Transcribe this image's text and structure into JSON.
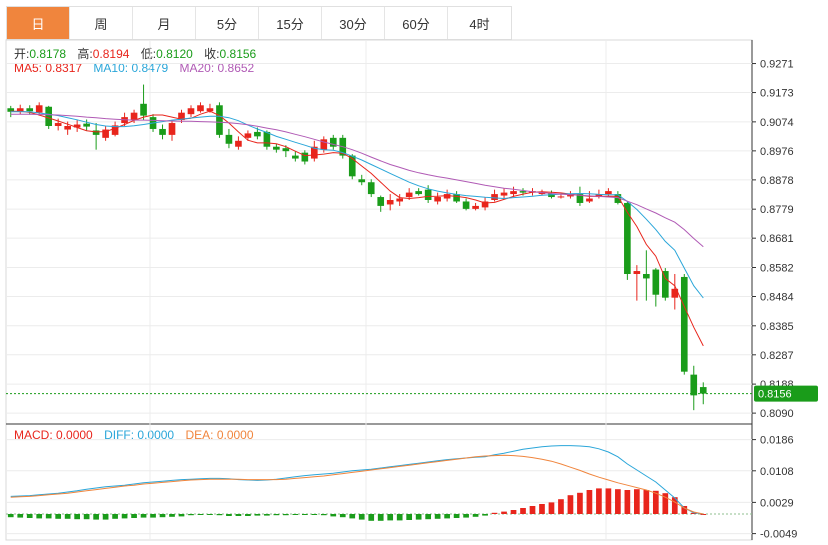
{
  "tabs": [
    "日",
    "周",
    "月",
    "5分",
    "15分",
    "30分",
    "60分",
    "4时"
  ],
  "active_tab": 0,
  "ohlc_info": {
    "open_label": "开:",
    "open": "0.8178",
    "high_label": "高:",
    "high": "0.8194",
    "low_label": "低:",
    "low": "0.8120",
    "close_label": "收:",
    "close": "0.8156"
  },
  "ma_info": {
    "ma5_label": "MA5:",
    "ma5": "0.8317",
    "ma10_label": "MA10:",
    "ma10": "0.8479",
    "ma20_label": "MA20:",
    "ma20": "0.8652"
  },
  "macd_info": {
    "macd_label": "MACD:",
    "macd": "0.0000",
    "diff_label": "DIFF:",
    "diff": "0.0000",
    "dea_label": "DEA:",
    "dea": "0.0000"
  },
  "current_price_tag": "0.8156",
  "colors": {
    "up": "#e8251c",
    "down": "#1a9c1a",
    "ma5": "#e8251c",
    "ma10": "#2aa6d9",
    "ma20": "#b05ab5",
    "macd": "#e8251c",
    "diff": "#2aa6d9",
    "dea": "#f0853d",
    "price_line": "#1a9c1a",
    "tab_active": "#f0853d"
  },
  "chart_data": [
    {
      "type": "candlestick",
      "y_ticks": [
        "0.9271",
        "0.9173",
        "0.9074",
        "0.8976",
        "0.8878",
        "0.8779",
        "0.8681",
        "0.8582",
        "0.8484",
        "0.8385",
        "0.8287",
        "0.8188",
        "0.8090"
      ],
      "ylim": [
        0.806,
        0.931
      ],
      "candles": [
        [
          0.912,
          0.9108,
          0.9128,
          0.909
        ],
        [
          0.9108,
          0.912,
          0.9132,
          0.91
        ],
        [
          0.912,
          0.911,
          0.913,
          0.9098
        ],
        [
          0.9105,
          0.913,
          0.914,
          0.9095
        ],
        [
          0.9125,
          0.906,
          0.9128,
          0.905
        ],
        [
          0.906,
          0.907,
          0.9085,
          0.9045
        ],
        [
          0.9048,
          0.906,
          0.9075,
          0.903
        ],
        [
          0.9055,
          0.9065,
          0.908,
          0.904
        ],
        [
          0.9068,
          0.9058,
          0.9082,
          0.9045
        ],
        [
          0.9045,
          0.903,
          0.907,
          0.898
        ],
        [
          0.902,
          0.9048,
          0.906,
          0.901
        ],
        [
          0.903,
          0.9062,
          0.9075,
          0.9025
        ],
        [
          0.907,
          0.909,
          0.9105,
          0.906
        ],
        [
          0.908,
          0.9105,
          0.9115,
          0.907
        ],
        [
          0.9135,
          0.9095,
          0.92,
          0.908
        ],
        [
          0.909,
          0.905,
          0.91,
          0.904
        ],
        [
          0.905,
          0.903,
          0.9065,
          0.9015
        ],
        [
          0.903,
          0.907,
          0.908,
          0.901
        ],
        [
          0.908,
          0.9105,
          0.9115,
          0.907
        ],
        [
          0.91,
          0.912,
          0.913,
          0.909
        ],
        [
          0.911,
          0.913,
          0.914,
          0.9105
        ],
        [
          0.911,
          0.912,
          0.9135,
          0.9105
        ],
        [
          0.913,
          0.903,
          0.914,
          0.902
        ],
        [
          0.903,
          0.9,
          0.905,
          0.8985
        ],
        [
          0.899,
          0.901,
          0.9025,
          0.898
        ],
        [
          0.902,
          0.9035,
          0.9045,
          0.901
        ],
        [
          0.904,
          0.9025,
          0.9055,
          0.9015
        ],
        [
          0.904,
          0.899,
          0.9045,
          0.898
        ],
        [
          0.899,
          0.898,
          0.9,
          0.897
        ],
        [
          0.8985,
          0.8975,
          0.8995,
          0.8955
        ],
        [
          0.896,
          0.895,
          0.8975,
          0.894
        ],
        [
          0.897,
          0.894,
          0.8978,
          0.893
        ],
        [
          0.895,
          0.899,
          0.901,
          0.894
        ],
        [
          0.898,
          0.9015,
          0.9025,
          0.897
        ],
        [
          0.902,
          0.899,
          0.903,
          0.898
        ],
        [
          0.902,
          0.896,
          0.903,
          0.895
        ],
        [
          0.896,
          0.889,
          0.8965,
          0.888
        ],
        [
          0.888,
          0.887,
          0.8895,
          0.886
        ],
        [
          0.887,
          0.883,
          0.888,
          0.882
        ],
        [
          0.882,
          0.879,
          0.8825,
          0.877
        ],
        [
          0.8795,
          0.881,
          0.883,
          0.8775
        ],
        [
          0.8805,
          0.8815,
          0.883,
          0.879
        ],
        [
          0.882,
          0.8835,
          0.885,
          0.881
        ],
        [
          0.884,
          0.883,
          0.885,
          0.8825
        ],
        [
          0.8845,
          0.881,
          0.886,
          0.88
        ],
        [
          0.8805,
          0.882,
          0.8835,
          0.8795
        ],
        [
          0.8815,
          0.883,
          0.8845,
          0.8805
        ],
        [
          0.883,
          0.8805,
          0.884,
          0.88
        ],
        [
          0.8805,
          0.878,
          0.8815,
          0.8775
        ],
        [
          0.878,
          0.879,
          0.88,
          0.8775
        ],
        [
          0.8785,
          0.8805,
          0.882,
          0.8775
        ],
        [
          0.881,
          0.883,
          0.8845,
          0.8805
        ],
        [
          0.8825,
          0.8835,
          0.885,
          0.8815
        ],
        [
          0.883,
          0.884,
          0.8855,
          0.882
        ],
        [
          0.884,
          0.8835,
          0.885,
          0.8825
        ],
        [
          0.8835,
          0.884,
          0.885,
          0.8825
        ],
        [
          0.883,
          0.8838,
          0.8845,
          0.8825
        ],
        [
          0.8832,
          0.882,
          0.8842,
          0.8815
        ],
        [
          0.882,
          0.8822,
          0.8832,
          0.8815
        ],
        [
          0.8822,
          0.883,
          0.884,
          0.8815
        ],
        [
          0.883,
          0.88,
          0.8855,
          0.879
        ],
        [
          0.8805,
          0.8815,
          0.884,
          0.88
        ],
        [
          0.882,
          0.883,
          0.8845,
          0.8815
        ],
        [
          0.883,
          0.884,
          0.885,
          0.882
        ],
        [
          0.883,
          0.88,
          0.884,
          0.8795
        ],
        [
          0.88,
          0.856,
          0.8805,
          0.854
        ],
        [
          0.856,
          0.857,
          0.859,
          0.847
        ],
        [
          0.856,
          0.8545,
          0.864,
          0.847
        ],
        [
          0.8575,
          0.849,
          0.858,
          0.845
        ],
        [
          0.857,
          0.848,
          0.858,
          0.847
        ],
        [
          0.848,
          0.851,
          0.856,
          0.844
        ],
        [
          0.855,
          0.823,
          0.856,
          0.822
        ],
        [
          0.822,
          0.815,
          0.825,
          0.81
        ],
        [
          0.8178,
          0.8156,
          0.8194,
          0.812
        ]
      ],
      "ma5": [
        0.911,
        0.911,
        0.9106,
        0.9097,
        0.9087,
        0.9077,
        0.9066,
        0.9055,
        0.9044,
        0.904,
        0.9041,
        0.9052,
        0.9065,
        0.9079,
        0.909,
        0.9097,
        0.9097,
        0.909,
        0.9083,
        0.9086,
        0.91,
        0.911,
        0.9095,
        0.907,
        0.904,
        0.9012,
        0.9003,
        0.9003,
        0.9,
        0.899,
        0.8975,
        0.896,
        0.8962,
        0.8965,
        0.897,
        0.8968,
        0.895,
        0.8925,
        0.89,
        0.887,
        0.884,
        0.8818,
        0.8815,
        0.8818,
        0.8822,
        0.8823,
        0.8825,
        0.8822,
        0.8818,
        0.881,
        0.88,
        0.8802,
        0.8812,
        0.8822,
        0.883,
        0.8836,
        0.8838,
        0.8836,
        0.8834,
        0.883,
        0.8826,
        0.8822,
        0.8822,
        0.8823,
        0.8822,
        0.8768,
        0.872,
        0.866,
        0.862,
        0.8545,
        0.852,
        0.845,
        0.838,
        0.8317
      ],
      "ma10": [
        0.9108,
        0.9108,
        0.9108,
        0.9104,
        0.91,
        0.9095,
        0.9088,
        0.9081,
        0.9073,
        0.9065,
        0.906,
        0.9058,
        0.9058,
        0.9061,
        0.9065,
        0.907,
        0.9075,
        0.908,
        0.9083,
        0.9087,
        0.909,
        0.9093,
        0.9093,
        0.9088,
        0.9078,
        0.9063,
        0.905,
        0.9038,
        0.9025,
        0.9015,
        0.9005,
        0.8995,
        0.8985,
        0.898,
        0.8978,
        0.897,
        0.8958,
        0.8945,
        0.893,
        0.8915,
        0.89,
        0.8885,
        0.887,
        0.8858,
        0.8848,
        0.884,
        0.8834,
        0.8829,
        0.8825,
        0.8822,
        0.8819,
        0.8817,
        0.8815,
        0.8818,
        0.882,
        0.8823,
        0.8826,
        0.8828,
        0.883,
        0.8831,
        0.8832,
        0.8831,
        0.8829,
        0.8828,
        0.8828,
        0.8805,
        0.8778,
        0.8745,
        0.871,
        0.867,
        0.864,
        0.858,
        0.852,
        0.8479
      ],
      "ma20": [
        0.91,
        0.91,
        0.91,
        0.9099,
        0.9098,
        0.9097,
        0.9095,
        0.9093,
        0.909,
        0.9088,
        0.9085,
        0.9083,
        0.9081,
        0.908,
        0.908,
        0.9079,
        0.9078,
        0.9077,
        0.9076,
        0.9076,
        0.9075,
        0.9074,
        0.9073,
        0.9071,
        0.9068,
        0.9064,
        0.9059,
        0.9053,
        0.9047,
        0.904,
        0.9032,
        0.9024,
        0.9015,
        0.9006,
        0.8998,
        0.899,
        0.898,
        0.8968,
        0.8955,
        0.8942,
        0.893,
        0.892,
        0.891,
        0.8902,
        0.8895,
        0.8889,
        0.8884,
        0.8878,
        0.8872,
        0.8866,
        0.886,
        0.8855,
        0.885,
        0.8846,
        0.8842,
        0.8838,
        0.8835,
        0.8832,
        0.883,
        0.8828,
        0.8826,
        0.8824,
        0.8822,
        0.882,
        0.8818,
        0.8806,
        0.8794,
        0.878,
        0.8766,
        0.875,
        0.8735,
        0.871,
        0.868,
        0.8652
      ]
    },
    {
      "type": "macd",
      "y_ticks": [
        "0.0186",
        "0.0108",
        "0.0029",
        "-0.0049"
      ],
      "ylim": [
        -0.006,
        0.021
      ],
      "hist": [
        -0.0008,
        -0.0009,
        -0.001,
        -0.0011,
        -0.0011,
        -0.0012,
        -0.0012,
        -0.0013,
        -0.0013,
        -0.0014,
        -0.0014,
        -0.0012,
        -0.0011,
        -0.001,
        -0.0009,
        -0.0009,
        -0.0008,
        -0.0007,
        -0.0006,
        -0.0003,
        -0.0002,
        -0.0002,
        -0.0003,
        -0.0005,
        -0.0005,
        -0.0005,
        -0.0004,
        -0.0004,
        -0.0003,
        -0.0003,
        -0.0002,
        -0.0002,
        -0.0001,
        -0.0003,
        -0.0006,
        -0.0008,
        -0.0011,
        -0.0014,
        -0.0017,
        -0.0017,
        -0.0016,
        -0.0016,
        -0.0015,
        -0.0014,
        -0.0013,
        -0.0012,
        -0.0011,
        -0.001,
        -0.0009,
        -0.0007,
        -0.0004,
        0.0003,
        0.0006,
        0.001,
        0.0015,
        0.002,
        0.0025,
        0.0029,
        0.0037,
        0.0047,
        0.0053,
        0.006,
        0.0064,
        0.0064,
        0.0062,
        0.006,
        0.0062,
        0.006,
        0.0058,
        0.0052,
        0.0042,
        0.002,
        0.0003,
        0.0
      ],
      "diff": [
        0.0044,
        0.0045,
        0.0046,
        0.0048,
        0.005,
        0.0052,
        0.0055,
        0.0058,
        0.0062,
        0.0065,
        0.0068,
        0.007,
        0.0072,
        0.0075,
        0.0078,
        0.008,
        0.0082,
        0.0084,
        0.0086,
        0.0087,
        0.0088,
        0.0089,
        0.0089,
        0.0088,
        0.0086,
        0.0085,
        0.0084,
        0.0085,
        0.0087,
        0.009,
        0.0093,
        0.0096,
        0.0098,
        0.01,
        0.0102,
        0.0105,
        0.0108,
        0.011,
        0.0112,
        0.0115,
        0.0118,
        0.0121,
        0.0124,
        0.0127,
        0.013,
        0.0133,
        0.0136,
        0.0138,
        0.014,
        0.0142,
        0.0143,
        0.0148,
        0.0152,
        0.0157,
        0.0162,
        0.0165,
        0.0168,
        0.017,
        0.0171,
        0.0171,
        0.017,
        0.0168,
        0.0163,
        0.0155,
        0.0143,
        0.0125,
        0.011,
        0.0095,
        0.008,
        0.006,
        0.004,
        0.0015,
        0.0003,
        0.0
      ],
      "dea": [
        0.0042,
        0.0043,
        0.0044,
        0.0046,
        0.0048,
        0.005,
        0.0052,
        0.0055,
        0.0058,
        0.0061,
        0.0064,
        0.0067,
        0.007,
        0.0072,
        0.0075,
        0.0077,
        0.0079,
        0.0081,
        0.0083,
        0.0085,
        0.0086,
        0.0087,
        0.0087,
        0.0087,
        0.0087,
        0.0086,
        0.0086,
        0.0086,
        0.0086,
        0.0087,
        0.0089,
        0.0091,
        0.0093,
        0.0095,
        0.0098,
        0.0101,
        0.0104,
        0.0107,
        0.011,
        0.0113,
        0.0116,
        0.0119,
        0.0122,
        0.0125,
        0.0128,
        0.0131,
        0.0134,
        0.0137,
        0.014,
        0.0143,
        0.0145,
        0.0146,
        0.0147,
        0.0146,
        0.0144,
        0.0141,
        0.0137,
        0.0132,
        0.0125,
        0.0117,
        0.0109,
        0.01,
        0.0092,
        0.0085,
        0.0078,
        0.0072,
        0.0066,
        0.006,
        0.0052,
        0.0042,
        0.003,
        0.0015,
        0.0005,
        0.0
      ]
    }
  ]
}
